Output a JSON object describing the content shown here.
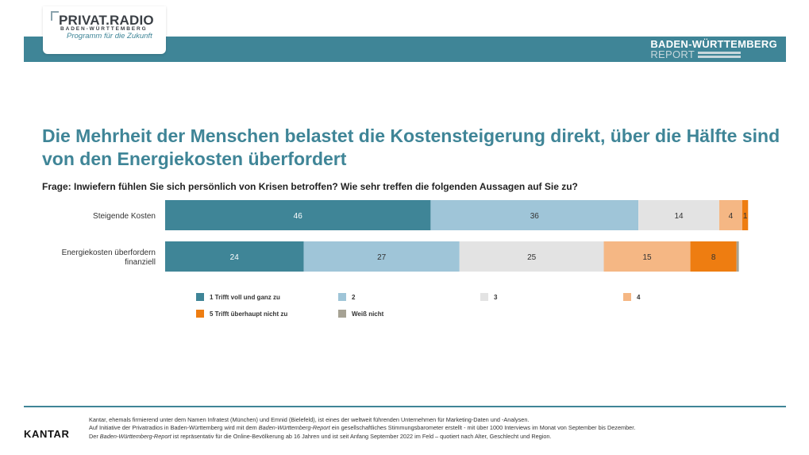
{
  "header": {
    "logo_main": "PRIVAT.RADIO",
    "logo_sub": "BADEN-WÜRTTEMBERG",
    "logo_tagline": "Programm für die Zukunft",
    "report_title": "BADEN-WÜRTTEMBERG",
    "report_subtitle": "REPORT"
  },
  "headline": "Die Mehrheit der Menschen belastet die Kostensteigerung direkt, über die Hälfte sind von den Energiekosten überfordert",
  "question": "Frage: Inwiefern fühlen Sie sich persönlich von Krisen betroffen? Wie sehr treffen die folgenden Aussagen auf Sie zu?",
  "colors": {
    "brand": "#3f8597",
    "s1": "#3f8597",
    "s2": "#9fc5d8",
    "s3": "#e3e3e3",
    "s4": "#f5b784",
    "s5": "#ee7d11",
    "s6": "#a6a294"
  },
  "chart_data": {
    "type": "bar",
    "orientation": "horizontal",
    "stacked": true,
    "title": "",
    "categories": [
      "Steigende Kosten",
      "Energiekosten überfordern finanziell"
    ],
    "category_lines": [
      [
        "Steigende Kosten"
      ],
      [
        "Energiekosten überfordern",
        "finanziell"
      ]
    ],
    "series": [
      {
        "name": "1 Trifft voll und ganz zu",
        "values": [
          46,
          24
        ],
        "color": "#3f8597",
        "label_color": "#ffffff"
      },
      {
        "name": "2",
        "values": [
          36,
          27
        ],
        "color": "#9fc5d8",
        "label_color": "#333333"
      },
      {
        "name": "3",
        "values": [
          14,
          25
        ],
        "color": "#e3e3e3",
        "label_color": "#333333"
      },
      {
        "name": "4",
        "values": [
          4,
          15
        ],
        "color": "#f5b784",
        "label_color": "#333333"
      },
      {
        "name": "5 Trifft überhaupt nicht zu",
        "values": [
          1,
          8
        ],
        "color": "#ee7d11",
        "label_color": "#333333"
      },
      {
        "name": "Weiß nicht",
        "values": [
          0,
          0.4
        ],
        "color": "#a6a294",
        "label_color": "#333333"
      }
    ],
    "data_labels": [
      [
        "46",
        "36",
        "14",
        "4",
        "1",
        ""
      ],
      [
        "24",
        "27",
        "25",
        "15",
        "8",
        ""
      ]
    ],
    "xlim": [
      0,
      100
    ],
    "legend": "bottom"
  },
  "legend": [
    {
      "label": "1 Trifft voll und ganz zu",
      "color": "#3f8597"
    },
    {
      "label": "2",
      "color": "#9fc5d8"
    },
    {
      "label": "3",
      "color": "#e3e3e3"
    },
    {
      "label": "4",
      "color": "#f5b784"
    },
    {
      "label": "5 Trifft überhaupt nicht zu",
      "color": "#ee7d11"
    },
    {
      "label": "Weiß nicht",
      "color": "#a6a294"
    }
  ],
  "footer": {
    "brand": "KANTAR",
    "line1": "Kantar, ehemals firmierend unter dem Namen Infratest (München) und Emnid (Bielefeld), ist eines der weltweit führenden Unternehmen für Marketing-Daten und -Analysen.",
    "line2a": "Auf Initiative der Privatradios in Baden-Württemberg wird mit dem ",
    "line2b": "Baden-Württemberg-Report",
    "line2c": " ein gesellschaftliches Stimmungsbarometer erstellt - mit über 1000 Interviews im Monat von September bis Dezember.",
    "line3a": "Der ",
    "line3b": "Baden-Württemberg-Report",
    "line3c": " ist repräsentativ für die Online-Bevölkerung ab 16 Jahren und ist seit Anfang September 2022 im Feld – quotiert nach Alter, Geschlecht und Region."
  }
}
